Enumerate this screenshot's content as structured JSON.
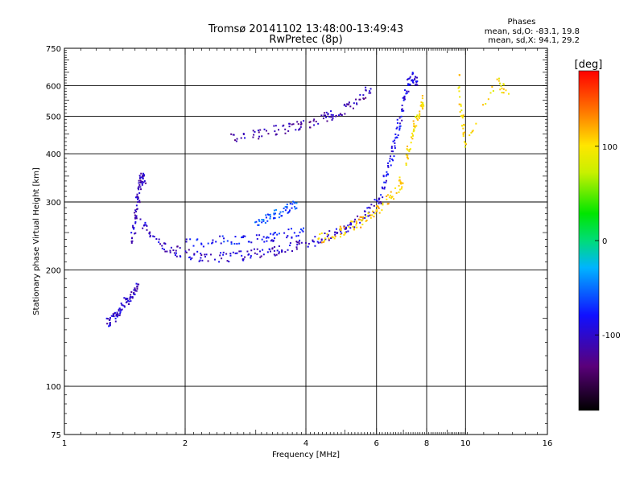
{
  "chart_data": {
    "type": "scatter",
    "title": "Tromsø 20141102 13:48:00-13:49:43",
    "subtitle": "RwPretec (8p)",
    "xlabel": "Frequency [MHz]",
    "ylabel": "Stationary phase Virtual Height [km]",
    "x_scale": "log",
    "y_scale": "log",
    "xlim": [
      1,
      16
    ],
    "ylim": [
      75,
      750
    ],
    "grid": true,
    "x_ticks": [
      1,
      2,
      4,
      6,
      8,
      10,
      16
    ],
    "x_tick_labels": [
      "1",
      "2",
      "4",
      "6",
      "8",
      "10",
      "16"
    ],
    "y_ticks": [
      75,
      100,
      200,
      300,
      400,
      500,
      600,
      750
    ],
    "y_tick_labels": [
      "75",
      "100",
      "200",
      "300",
      "400",
      "500",
      "600",
      "750"
    ],
    "phase_stats": {
      "heading": "Phases",
      "o_line": "mean, sd,O: -83.1, 19.8",
      "x_line": "mean, sd,X:  94.1, 29.2"
    },
    "colorbar": {
      "label": "[deg]",
      "range": [
        -180,
        180
      ],
      "ticks": [
        -100,
        0,
        100
      ],
      "tick_labels": [
        "-100",
        "0",
        "100"
      ]
    },
    "traces": [
      {
        "x": [
          1.28,
          1.32,
          1.36,
          1.4,
          1.45,
          1.49,
          1.53
        ],
        "y": [
          145,
          150,
          156,
          162,
          168,
          175,
          185
        ],
        "phase": -100
      },
      {
        "x": [
          1.48,
          1.5,
          1.52,
          1.54,
          1.56,
          1.58
        ],
        "y": [
          240,
          270,
          300,
          330,
          350,
          340
        ],
        "phase": -105
      },
      {
        "x": [
          1.55,
          1.65,
          1.8,
          2.0,
          2.2,
          2.5,
          2.8,
          3.1,
          3.4,
          3.8,
          4.2,
          4.6,
          5.0,
          5.4,
          5.8,
          6.2
        ],
        "y": [
          270,
          245,
          228,
          220,
          216,
          216,
          218,
          221,
          225,
          231,
          238,
          246,
          256,
          268,
          285,
          310
        ],
        "phase": -100
      },
      {
        "x": [
          2.0,
          2.4,
          2.8,
          3.2,
          3.6,
          4.0
        ],
        "y": [
          235,
          238,
          240,
          242,
          248,
          253
        ],
        "phase": -80
      },
      {
        "x": [
          4.3,
          4.7,
          5.1,
          5.5,
          5.9,
          6.3,
          6.7,
          7.0
        ],
        "y": [
          240,
          247,
          256,
          267,
          280,
          298,
          320,
          345
        ],
        "phase": 110
      },
      {
        "x": [
          6.2,
          6.4,
          6.6,
          6.8,
          7.0,
          7.2,
          7.4,
          7.6
        ],
        "y": [
          320,
          360,
          410,
          470,
          540,
          610,
          640,
          600
        ],
        "phase": -90
      },
      {
        "x": [
          7.1,
          7.3,
          7.5,
          7.7,
          7.9
        ],
        "y": [
          380,
          430,
          480,
          520,
          560
        ],
        "phase": 100
      },
      {
        "x": [
          2.6,
          3.0,
          3.4,
          3.8,
          4.2,
          4.6,
          5.0,
          5.4,
          5.8
        ],
        "y": [
          440,
          450,
          460,
          470,
          485,
          500,
          520,
          550,
          590
        ],
        "phase": -110
      },
      {
        "x": [
          3.0,
          3.2,
          3.4,
          3.6,
          3.8
        ],
        "y": [
          265,
          272,
          280,
          288,
          296
        ],
        "phase": -60
      },
      {
        "x": [
          9.6,
          9.8,
          10.0,
          12.0,
          12.8
        ],
        "y": [
          650,
          500,
          420,
          620,
          560
        ],
        "phase": 100
      }
    ]
  }
}
